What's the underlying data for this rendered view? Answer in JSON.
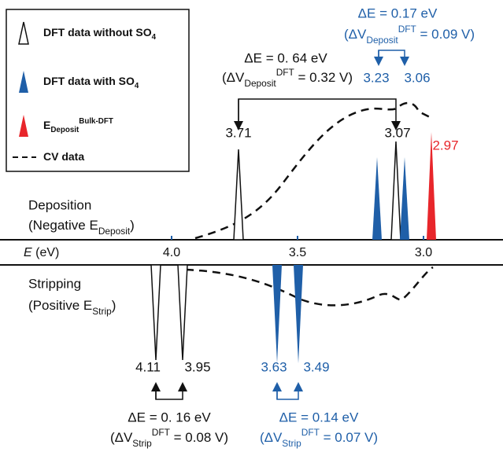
{
  "legend": [
    {
      "text": "DFT data without SO",
      "sub": "4"
    },
    {
      "text": "DFT data with SO",
      "sub": "4"
    },
    {
      "text": "E",
      "sub": "Deposit",
      "sup": "Bulk-DFT"
    },
    {
      "text": "CV data"
    }
  ],
  "axis": {
    "label": {
      "text": "E",
      "post": " (eV)"
    },
    "ticks": [
      {
        "value": 4,
        "label": "4.0"
      },
      {
        "value": 3.5,
        "label": "3.5"
      },
      {
        "value": 3,
        "label": "3.0"
      }
    ]
  },
  "regions": {
    "deposition": {
      "title": "Deposition",
      "subtitle": {
        "text": "(Negative E",
        "sub": "Deposit",
        "post": ")"
      }
    },
    "stripping": {
      "title": "Stripping",
      "subtitle": {
        "text": "(Positive E",
        "sub": "Strip",
        "post": ")"
      }
    }
  },
  "deposition_peaks": [
    {
      "value": 3.71,
      "color": "#111111",
      "filled": false
    },
    {
      "value": 3.23,
      "color": "#1f5fa8",
      "filled": true
    },
    {
      "value": 3.07,
      "color": "#111111",
      "filled": false
    },
    {
      "value": 3.06,
      "color": "#1f5fa8",
      "filled": true
    },
    {
      "value": 2.97,
      "color": "#e8262b",
      "filled": true
    }
  ],
  "stripping_peaks": [
    {
      "value": 4.11,
      "color": "#111111",
      "filled": false
    },
    {
      "value": 3.95,
      "color": "#111111",
      "filled": false
    },
    {
      "value": 3.63,
      "color": "#1f5fa8",
      "filled": true
    },
    {
      "value": 3.49,
      "color": "#1f5fa8",
      "filled": true
    }
  ],
  "annotations": [
    {
      "delta": "ΔE = 0. 64 eV",
      "detail": {
        "text": "(ΔV",
        "sub": "Deposit",
        "sup": "DFT",
        "post": " = 0.32 V)"
      },
      "color": "#111111"
    },
    {
      "delta": "ΔE = 0.17 eV",
      "detail": {
        "text": "(ΔV",
        "sub": "Deposit",
        "sup": "DFT",
        "post": " = 0.09 V)"
      },
      "color": "#1f5fa8"
    },
    {
      "delta": "ΔE = 0. 16 eV",
      "detail": {
        "text": "(ΔV",
        "sub": "Strip",
        "sup": "DFT",
        "post": " = 0.08 V)"
      },
      "color": "#111111"
    },
    {
      "delta": "ΔE = 0.14 eV",
      "detail": {
        "text": "(ΔV",
        "sub": "Strip",
        "sup": "DFT",
        "post": " = 0.07 V)"
      },
      "color": "#1f5fa8"
    }
  ]
}
